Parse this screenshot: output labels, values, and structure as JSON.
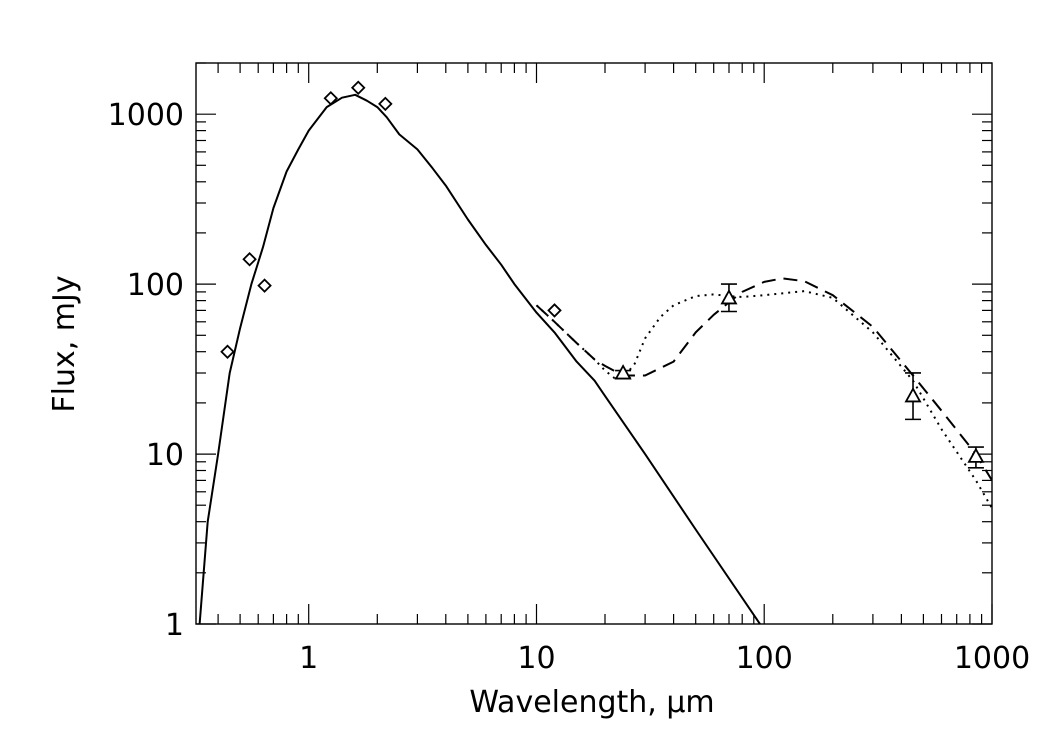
{
  "chart_data": {
    "type": "line",
    "title": "",
    "xlabel": "Wavelength, µm",
    "ylabel": "Flux, mJy",
    "xscale": "log",
    "yscale": "log",
    "xlim": [
      0.32,
      1000
    ],
    "ylim": [
      1,
      2000
    ],
    "x_ticks": [
      1,
      10,
      100,
      1000
    ],
    "x_tick_labels": [
      "1",
      "10",
      "100",
      "1000"
    ],
    "y_ticks": [
      1,
      10,
      100,
      1000
    ],
    "y_tick_labels": [
      "1",
      "10",
      "100",
      "1000"
    ],
    "grid": false,
    "legend": "none",
    "series": [
      {
        "style": "solid",
        "x": [
          0.33,
          0.36,
          0.4,
          0.45,
          0.5,
          0.56,
          0.63,
          0.7,
          0.8,
          0.9,
          1.0,
          1.2,
          1.4,
          1.6,
          1.8,
          2.0,
          2.2,
          2.5,
          3.0,
          3.5,
          4.0,
          5.0,
          6.0,
          7.0,
          8.0,
          10.0,
          12.0,
          15.0,
          18.0,
          20.0,
          30.0,
          50.0,
          100.0
        ],
        "y": [
          0.9,
          4,
          10,
          30,
          55,
          100,
          165,
          280,
          460,
          620,
          800,
          1100,
          1250,
          1300,
          1200,
          1100,
          960,
          760,
          620,
          480,
          380,
          240,
          170,
          130,
          100,
          68,
          52,
          35,
          27,
          22,
          10,
          3.6,
          0.92
        ]
      },
      {
        "style": "dashed",
        "x": [
          10.0,
          12.0,
          15.0,
          18.0,
          20.0,
          24.0,
          30.0,
          40.0,
          50.0,
          60.0,
          70.0,
          80.0,
          100.0,
          120.0,
          150.0,
          200.0,
          300.0,
          450.0,
          600.0,
          850.0,
          1000.0
        ],
        "y": [
          75,
          60,
          45,
          36,
          33,
          29,
          29,
          35,
          52,
          66,
          78,
          90,
          103,
          108,
          104,
          86,
          56,
          29,
          18,
          10,
          7
        ]
      },
      {
        "style": "dotted",
        "x": [
          10.0,
          12.0,
          15.0,
          18.0,
          20.0,
          22.0,
          24.0,
          27.0,
          30.0,
          35.0,
          40.0,
          50.0,
          60.0,
          70.0,
          80.0,
          100.0,
          150.0,
          200.0,
          300.0,
          450.0,
          600.0,
          850.0,
          1000.0
        ],
        "y": [
          75,
          60,
          45,
          36,
          31,
          28,
          28,
          34,
          48,
          64,
          75,
          85,
          87,
          85,
          84,
          86,
          91,
          83,
          52,
          27,
          14,
          7,
          4.8
        ]
      }
    ],
    "photometry_diamonds": [
      {
        "x": 0.44,
        "y": 40
      },
      {
        "x": 0.55,
        "y": 140
      },
      {
        "x": 0.64,
        "y": 98
      },
      {
        "x": 1.25,
        "y": 1240
      },
      {
        "x": 1.65,
        "y": 1430
      },
      {
        "x": 2.17,
        "y": 1150
      },
      {
        "x": 12.0,
        "y": 70
      }
    ],
    "photometry_triangles": [
      {
        "x": 24.0,
        "y": 30,
        "err_low": 28,
        "err_high": 31
      },
      {
        "x": 70.0,
        "y": 83,
        "err_low": 69,
        "err_high": 100
      },
      {
        "x": 450.0,
        "y": 22,
        "err_low": 16,
        "err_high": 30
      },
      {
        "x": 850.0,
        "y": 9.7,
        "err_low": 8.3,
        "err_high": 11.0
      }
    ]
  }
}
